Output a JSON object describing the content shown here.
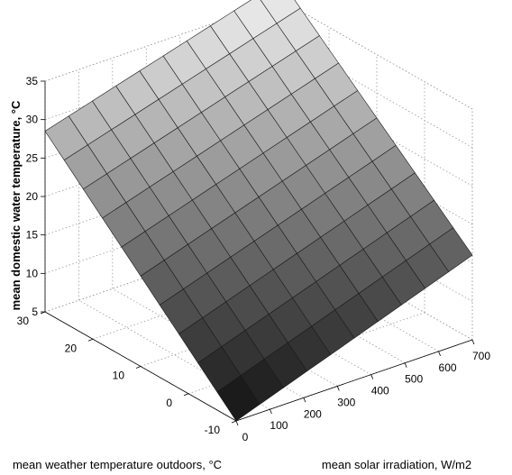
{
  "chart_data": {
    "type": "surface",
    "title": "",
    "xlabel": "mean solar irradiation, W/m2",
    "ylabel": "mean weather temperature outdoors, °C",
    "zlabel": "mean domestic water temperature, °C",
    "x_ticks": [
      "0",
      "100",
      "200",
      "300",
      "400",
      "500",
      "600",
      "700"
    ],
    "y_ticks": [
      "-10",
      "0",
      "10",
      "20",
      "30"
    ],
    "z_ticks": [
      "5",
      "10",
      "15",
      "20",
      "25",
      "30",
      "35"
    ],
    "xlim": [
      0,
      700
    ],
    "ylim": [
      -10,
      30
    ],
    "zlim": [
      5,
      35
    ],
    "grid": true,
    "colormap": "gray",
    "surface": {
      "x_range": [
        0,
        700
      ],
      "y_range": [
        -10,
        30
      ],
      "grid_size": [
        10,
        10
      ],
      "corner_values": {
        "x0_y-10": 5.0,
        "x700_y-10": 16.0,
        "x0_y30": 28.5,
        "x700_y30": 37.5
      }
    }
  }
}
